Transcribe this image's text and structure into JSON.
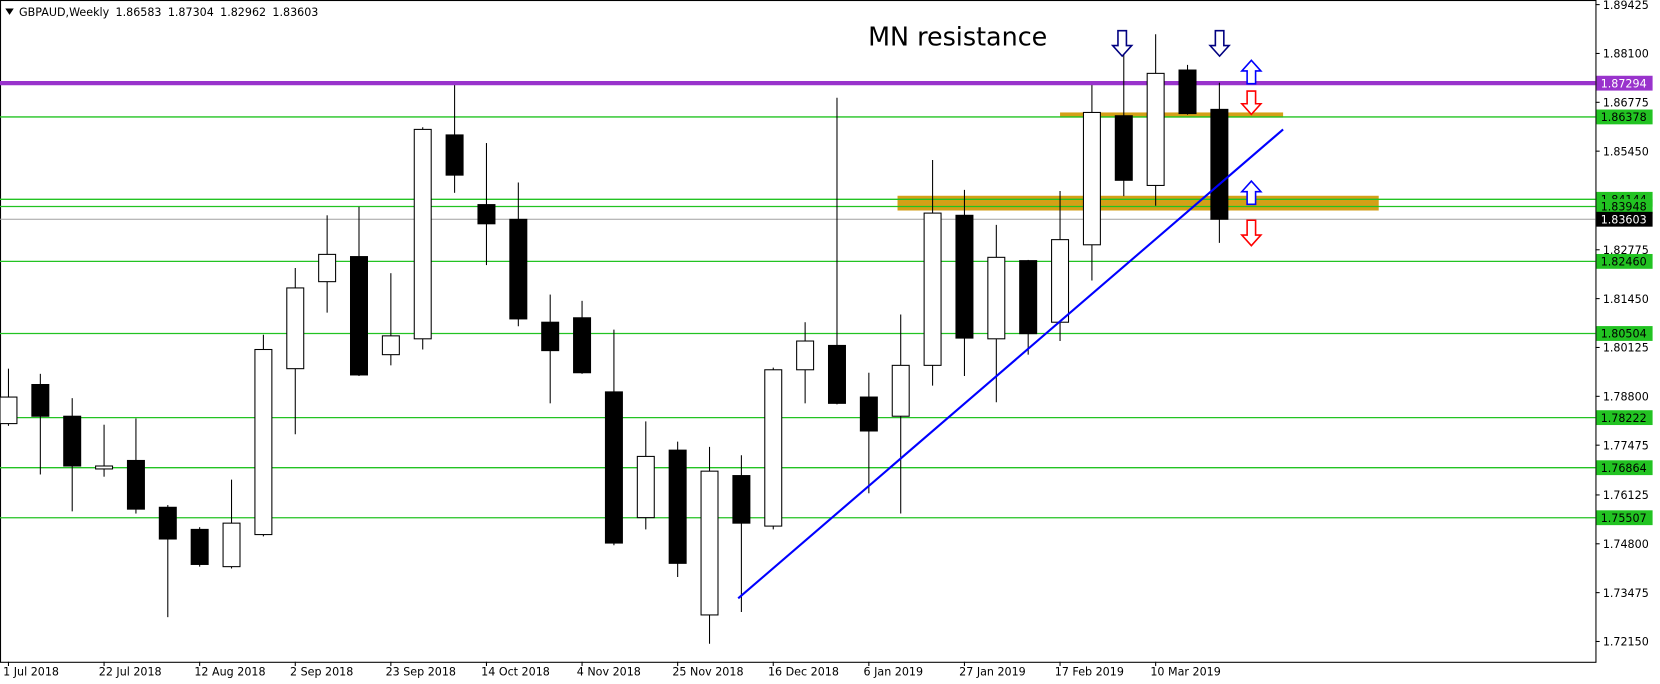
{
  "chart_data": {
    "type": "candlestick",
    "title": "GBPAUD,Weekly",
    "annotation": "MN resistance",
    "categories": [
      "1 Jul 2018",
      null,
      null,
      "22 Jul 2018",
      null,
      null,
      "12 Aug 2018",
      null,
      null,
      "2 Sep 2018",
      null,
      null,
      "23 Sep 2018",
      null,
      null,
      "14 Oct 2018",
      null,
      null,
      "4 Nov 2018",
      null,
      null,
      "25 Nov 2018",
      null,
      null,
      "16 Dec 2018",
      null,
      null,
      "6 Jan 2019",
      null,
      null,
      "27 Jan 2019",
      null,
      null,
      "17 Feb 2019",
      null,
      null,
      "10 Mar 2019",
      null,
      null
    ],
    "open": [
      1.7806,
      1.7912,
      1.7826,
      1.7683,
      1.7706,
      1.7579,
      1.7519,
      1.7418,
      1.7505,
      1.7955,
      1.8191,
      1.8259,
      1.7993,
      1.8036,
      1.8589,
      1.84,
      1.836,
      1.8081,
      1.8093,
      1.7892,
      1.7551,
      1.7734,
      1.7287,
      1.7665,
      1.7528,
      1.7952,
      1.8018,
      1.7878,
      1.7826,
      1.7964,
      1.8371,
      1.8036,
      1.8248,
      1.8081,
      1.8291,
      1.8641,
      1.8452,
      1.8765,
      1.86583
    ],
    "high": [
      1.7955,
      1.7941,
      1.7875,
      1.7803,
      1.782,
      1.7585,
      1.7525,
      1.7654,
      1.8047,
      1.8228,
      1.8371,
      1.8394,
      1.8214,
      1.861,
      1.8724,
      1.8567,
      1.846,
      1.8156,
      1.8139,
      1.8061,
      1.7812,
      1.7757,
      1.7743,
      1.772,
      1.7958,
      1.8081,
      1.869,
      1.7944,
      1.8102,
      1.8521,
      1.844,
      1.8345,
      1.825,
      1.8437,
      1.8724,
      1.8816,
      1.8862,
      1.8779,
      1.87304
    ],
    "low": [
      1.78,
      1.7668,
      1.7568,
      1.7662,
      1.7562,
      1.7281,
      1.7418,
      1.7413,
      1.75,
      1.7777,
      1.8107,
      1.7935,
      1.7964,
      1.8007,
      1.8432,
      1.8236,
      1.807,
      1.7861,
      1.7941,
      1.7476,
      1.7519,
      1.739,
      1.7209,
      1.7295,
      1.7519,
      1.7861,
      1.7858,
      1.7617,
      1.7562,
      1.7909,
      1.7935,
      1.7864,
      1.7993,
      1.803,
      1.8194,
      1.8423,
      1.8397,
      1.8644,
      1.82962
    ],
    "close": [
      1.7878,
      1.7826,
      1.7691,
      1.7691,
      1.7574,
      1.7493,
      1.7424,
      1.7536,
      1.8007,
      1.8174,
      1.8265,
      1.7938,
      1.8044,
      1.8604,
      1.848,
      1.8348,
      1.809,
      1.8004,
      1.7944,
      1.7482,
      1.7717,
      1.7427,
      1.7677,
      1.7536,
      1.7952,
      1.803,
      1.7861,
      1.7786,
      1.7964,
      1.8377,
      1.8038,
      1.8257,
      1.805,
      1.8305,
      1.865,
      1.8466,
      1.8756,
      1.8647,
      1.83603
    ],
    "ylim": [
      1.716,
      1.8955
    ],
    "yticks": [
      1.89425,
      {
        "value": 1.881,
        "label": "1.88100"
      },
      1.86775,
      {
        "value": 1.8545,
        "label": "1.85450"
      },
      1.82775,
      {
        "value": 1.8145,
        "label": "1.81450"
      },
      1.80125,
      {
        "value": 1.788,
        "label": "1.78800"
      },
      1.77475,
      1.76125,
      {
        "value": 1.748,
        "label": "1.74800"
      },
      1.73475,
      {
        "value": 1.7215,
        "label": "1.72150"
      }
    ],
    "levels": [
      {
        "value": 1.87294,
        "color": "#9933cc"
      },
      {
        "value": 1.86378,
        "color": "#22c322"
      },
      {
        "value": 1.84144,
        "color": "#22c322"
      },
      {
        "value": 1.83948,
        "color": "#22c322"
      },
      {
        "value": 1.8246,
        "label": "1.82460",
        "color": "#22c322"
      },
      {
        "value": 1.80504,
        "color": "#22c322"
      },
      {
        "value": 1.78222,
        "color": "#22c322"
      },
      {
        "value": 1.76864,
        "color": "#22c322"
      },
      {
        "value": 1.75507,
        "color": "#22c322"
      }
    ],
    "zones": [
      {
        "ylim": [
          1.8384,
          1.8424
        ],
        "x": [
          27.9,
          43.0
        ],
        "color": "#d4a017"
      },
      {
        "ylim": [
          1.8636,
          1.865
        ],
        "x": [
          33.0,
          40.0
        ],
        "color": "#d4a017"
      }
    ],
    "trendline": {
      "x": [
        22.9,
        40.0
      ],
      "y": [
        1.7332,
        1.8604
      ],
      "color": "#0000ff"
    },
    "candle_colors": {
      "up": "#ffffff",
      "down": "#000000"
    }
  }
}
